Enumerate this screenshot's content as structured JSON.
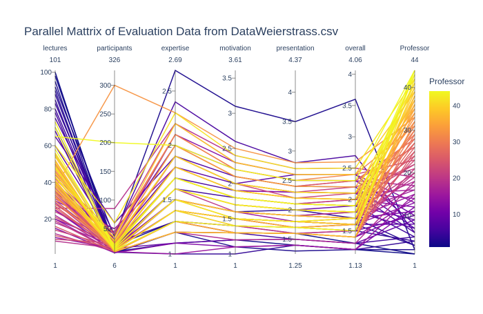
{
  "chart_data": {
    "type": "parallel_coordinates",
    "title": "Parallel Mattrix of Evaluation Data from DataWeierstrass.csv",
    "dimensions": [
      {
        "label": "lectures",
        "range": [
          1,
          101
        ],
        "range_min_label": "1",
        "range_max_label": "101",
        "ticks": [
          {
            "v": 20,
            "t": "20"
          },
          {
            "v": 40,
            "t": "40"
          },
          {
            "v": 60,
            "t": "60"
          },
          {
            "v": 80,
            "t": "80"
          },
          {
            "v": 100,
            "t": "100"
          }
        ]
      },
      {
        "label": "participants",
        "range": [
          6,
          326
        ],
        "range_min_label": "6",
        "range_max_label": "326",
        "ticks": [
          {
            "v": 50,
            "t": "50"
          },
          {
            "v": 100,
            "t": "100"
          },
          {
            "v": 150,
            "t": "150"
          },
          {
            "v": 200,
            "t": "200"
          },
          {
            "v": 250,
            "t": "250"
          },
          {
            "v": 300,
            "t": "300"
          }
        ]
      },
      {
        "label": "expertise",
        "range": [
          1,
          2.69
        ],
        "range_min_label": "1",
        "range_max_label": "2.69",
        "ticks": [
          {
            "v": 1,
            "t": "1"
          },
          {
            "v": 1.5,
            "t": "1.5"
          },
          {
            "v": 2,
            "t": "2"
          },
          {
            "v": 2.5,
            "t": "2.5"
          }
        ]
      },
      {
        "label": "motivation",
        "range": [
          1,
          3.61
        ],
        "range_min_label": "1",
        "range_max_label": "3.61",
        "ticks": [
          {
            "v": 1,
            "t": "1"
          },
          {
            "v": 1.5,
            "t": "1.5"
          },
          {
            "v": 2,
            "t": "2"
          },
          {
            "v": 2.5,
            "t": "2.5"
          },
          {
            "v": 3,
            "t": "3"
          },
          {
            "v": 3.5,
            "t": "3.5"
          }
        ]
      },
      {
        "label": "presentation",
        "range": [
          1.25,
          4.37
        ],
        "range_min_label": "1.25",
        "range_max_label": "4.37",
        "ticks": [
          {
            "v": 1.5,
            "t": "1.5"
          },
          {
            "v": 2,
            "t": "2"
          },
          {
            "v": 2.5,
            "t": "2.5"
          },
          {
            "v": 3,
            "t": "3"
          },
          {
            "v": 3.5,
            "t": "3.5"
          },
          {
            "v": 4,
            "t": "4"
          }
        ]
      },
      {
        "label": "overall",
        "range": [
          1.13,
          4.06
        ],
        "range_min_label": "1.13",
        "range_max_label": "4.06",
        "ticks": [
          {
            "v": 1.5,
            "t": "1.5"
          },
          {
            "v": 2,
            "t": "2"
          },
          {
            "v": 2.5,
            "t": "2.5"
          },
          {
            "v": 3,
            "t": "3"
          },
          {
            "v": 3.5,
            "t": "3.5"
          },
          {
            "v": 4,
            "t": "4"
          }
        ]
      },
      {
        "label": "Professor",
        "range": [
          1,
          44
        ],
        "range_min_label": "1",
        "range_max_label": "44",
        "ticks": [
          {
            "v": 10,
            "t": "10"
          },
          {
            "v": 20,
            "t": "20"
          },
          {
            "v": 30,
            "t": "30"
          },
          {
            "v": 40,
            "t": "40"
          }
        ]
      }
    ],
    "colorbar": {
      "title": "Professor",
      "range": [
        1,
        44
      ],
      "ticks": [
        {
          "v": 10,
          "t": "10"
        },
        {
          "v": 20,
          "t": "20"
        },
        {
          "v": 30,
          "t": "30"
        },
        {
          "v": 40,
          "t": "40"
        }
      ],
      "colorscale": [
        "#0d0887",
        "#46039f",
        "#7201a8",
        "#9c179e",
        "#bd3786",
        "#d8576b",
        "#ed7953",
        "#fb9f3a",
        "#fdca26",
        "#f0f921"
      ]
    },
    "rows": [
      [
        100,
        10,
        1.1,
        1.2,
        1.4,
        1.2,
        1
      ],
      [
        98,
        20,
        1.3,
        1.3,
        1.6,
        1.3,
        1
      ],
      [
        95,
        8,
        1.2,
        1.1,
        1.3,
        1.2,
        2
      ],
      [
        92,
        35,
        2.69,
        3.1,
        3.5,
        3.6,
        2
      ],
      [
        90,
        12,
        1.4,
        1.5,
        1.8,
        1.6,
        3
      ],
      [
        88,
        15,
        1.5,
        1.6,
        2.0,
        1.7,
        3
      ],
      [
        85,
        9,
        1.0,
        1.0,
        1.4,
        1.2,
        4
      ],
      [
        83,
        25,
        1.3,
        1.4,
        1.7,
        1.5,
        4
      ],
      [
        80,
        18,
        1.6,
        1.8,
        2.1,
        1.9,
        5
      ],
      [
        78,
        10,
        1.2,
        1.3,
        1.5,
        1.3,
        5
      ],
      [
        75,
        40,
        2.4,
        2.6,
        2.8,
        2.7,
        6
      ],
      [
        70,
        22,
        1.7,
        1.9,
        2.3,
        2.1,
        6
      ],
      [
        68,
        12,
        1.5,
        1.6,
        1.9,
        1.8,
        7
      ],
      [
        65,
        60,
        1.9,
        2.1,
        2.4,
        2.2,
        7
      ],
      [
        60,
        30,
        1.8,
        2.0,
        2.6,
        2.4,
        8
      ],
      [
        55,
        14,
        1.4,
        1.5,
        1.8,
        1.6,
        8
      ],
      [
        50,
        16,
        1.1,
        1.2,
        1.5,
        1.3,
        9
      ],
      [
        45,
        20,
        1.6,
        1.7,
        2.0,
        1.9,
        9
      ],
      [
        40,
        12,
        1.3,
        1.4,
        1.6,
        1.5,
        10
      ],
      [
        35,
        40,
        2.0,
        2.2,
        2.5,
        2.3,
        10
      ],
      [
        30,
        18,
        1.5,
        1.6,
        1.9,
        1.7,
        11
      ],
      [
        25,
        10,
        1.2,
        1.3,
        1.6,
        1.4,
        11
      ],
      [
        20,
        24,
        1.7,
        1.8,
        2.1,
        2.0,
        12
      ],
      [
        15,
        8,
        1.1,
        1.1,
        1.4,
        1.2,
        12
      ],
      [
        10,
        15,
        1.4,
        1.5,
        1.7,
        1.6,
        13
      ],
      [
        40,
        30,
        2.1,
        2.3,
        2.6,
        2.4,
        13
      ],
      [
        35,
        12,
        1.3,
        1.3,
        1.6,
        1.4,
        14
      ],
      [
        30,
        50,
        1.8,
        1.9,
        2.3,
        2.1,
        14
      ],
      [
        25,
        16,
        1.5,
        1.6,
        1.8,
        1.7,
        15
      ],
      [
        20,
        10,
        1.0,
        1.1,
        1.4,
        1.2,
        15
      ],
      [
        38,
        22,
        1.9,
        2.0,
        2.3,
        2.1,
        16
      ],
      [
        33,
        14,
        1.6,
        1.7,
        2.0,
        1.8,
        16
      ],
      [
        28,
        30,
        2.0,
        2.1,
        2.4,
        2.3,
        17
      ],
      [
        22,
        12,
        1.4,
        1.5,
        1.7,
        1.6,
        17
      ],
      [
        18,
        20,
        1.7,
        1.8,
        2.1,
        1.9,
        18
      ],
      [
        12,
        10,
        1.2,
        1.2,
        1.5,
        1.3,
        18
      ],
      [
        8,
        16,
        1.5,
        1.6,
        1.9,
        1.7,
        19
      ],
      [
        26,
        85,
        2.2,
        2.4,
        2.7,
        2.5,
        19
      ],
      [
        34,
        15,
        1.6,
        1.6,
        1.9,
        1.8,
        20
      ],
      [
        29,
        12,
        1.4,
        1.5,
        1.8,
        1.6,
        20
      ],
      [
        24,
        28,
        1.9,
        2.0,
        2.3,
        2.2,
        21
      ],
      [
        19,
        10,
        1.3,
        1.4,
        1.6,
        1.5,
        21
      ],
      [
        14,
        18,
        1.7,
        1.8,
        2.1,
        2.0,
        22
      ],
      [
        9,
        25,
        1.9,
        2.0,
        2.2,
        2.1,
        22
      ],
      [
        36,
        14,
        1.5,
        1.6,
        1.9,
        1.7,
        23
      ],
      [
        31,
        45,
        2.2,
        2.3,
        2.6,
        2.4,
        23
      ],
      [
        27,
        12,
        1.4,
        1.4,
        1.7,
        1.5,
        24
      ],
      [
        21,
        20,
        1.8,
        1.9,
        2.2,
        2.0,
        24
      ],
      [
        16,
        10,
        1.2,
        1.3,
        1.6,
        1.4,
        25
      ],
      [
        11,
        16,
        1.6,
        1.7,
        2.0,
        1.8,
        25
      ],
      [
        42,
        30,
        2.0,
        2.1,
        2.4,
        2.3,
        26
      ],
      [
        37,
        12,
        1.5,
        1.5,
        1.8,
        1.6,
        26
      ],
      [
        32,
        22,
        1.7,
        1.8,
        2.1,
        1.9,
        27
      ],
      [
        26,
        14,
        1.4,
        1.5,
        1.7,
        1.6,
        27
      ],
      [
        44,
        40,
        2.1,
        2.2,
        2.5,
        2.3,
        28
      ],
      [
        39,
        16,
        1.6,
        1.7,
        2.0,
        1.8,
        28
      ],
      [
        33,
        10,
        1.3,
        1.3,
        1.6,
        1.4,
        29
      ],
      [
        28,
        26,
        1.9,
        2.0,
        2.3,
        2.1,
        29
      ],
      [
        46,
        18,
        1.7,
        1.8,
        2.1,
        1.9,
        30
      ],
      [
        41,
        12,
        1.4,
        1.5,
        1.8,
        1.6,
        30
      ],
      [
        35,
        35,
        2.1,
        2.2,
        2.5,
        2.4,
        31
      ],
      [
        30,
        14,
        1.5,
        1.6,
        1.9,
        1.7,
        31
      ],
      [
        48,
        20,
        1.8,
        1.9,
        2.2,
        2.0,
        32
      ],
      [
        43,
        10,
        1.2,
        1.3,
        1.6,
        1.4,
        32
      ],
      [
        37,
        300,
        2.3,
        2.5,
        2.8,
        2.6,
        33
      ],
      [
        32,
        16,
        1.6,
        1.7,
        2.0,
        1.8,
        33
      ],
      [
        50,
        12,
        1.4,
        1.5,
        1.8,
        1.6,
        34
      ],
      [
        45,
        24,
        1.9,
        2.0,
        2.3,
        2.1,
        34
      ],
      [
        39,
        14,
        1.5,
        1.5,
        1.8,
        1.7,
        35
      ],
      [
        34,
        30,
        2.0,
        2.1,
        2.4,
        2.2,
        35
      ],
      [
        52,
        10,
        1.3,
        1.3,
        1.6,
        1.4,
        36
      ],
      [
        47,
        18,
        1.7,
        1.8,
        2.1,
        1.9,
        36
      ],
      [
        41,
        12,
        1.4,
        1.5,
        1.7,
        1.6,
        37
      ],
      [
        36,
        22,
        1.8,
        1.9,
        2.2,
        2.0,
        37
      ],
      [
        54,
        16,
        1.6,
        1.7,
        2.0,
        1.8,
        38
      ],
      [
        49,
        10,
        1.2,
        1.3,
        1.6,
        1.4,
        38
      ],
      [
        43,
        35,
        2.2,
        2.3,
        2.6,
        2.4,
        39
      ],
      [
        38,
        14,
        1.5,
        1.6,
        1.9,
        1.7,
        39
      ],
      [
        56,
        20,
        1.8,
        1.9,
        2.2,
        2.0,
        40
      ],
      [
        51,
        12,
        1.4,
        1.5,
        1.8,
        1.6,
        40
      ],
      [
        45,
        28,
        1.9,
        2.0,
        2.3,
        2.1,
        41
      ],
      [
        40,
        16,
        1.6,
        1.7,
        2.0,
        1.8,
        41
      ],
      [
        60,
        60,
        2.3,
        2.4,
        2.7,
        2.5,
        42
      ],
      [
        55,
        12,
        1.4,
        1.4,
        1.7,
        1.5,
        42
      ],
      [
        48,
        22,
        1.7,
        1.8,
        2.1,
        1.9,
        43
      ],
      [
        43,
        14,
        1.5,
        1.5,
        1.8,
        1.7,
        43
      ],
      [
        65,
        200,
        2.0,
        2.2,
        2.5,
        2.3,
        44
      ],
      [
        58,
        18,
        1.7,
        1.8,
        2.1,
        1.9,
        44
      ],
      [
        70,
        12,
        1.3,
        1.4,
        1.7,
        1.5,
        44
      ],
      [
        73,
        16,
        1.6,
        1.7,
        2.0,
        1.8,
        43
      ]
    ]
  }
}
